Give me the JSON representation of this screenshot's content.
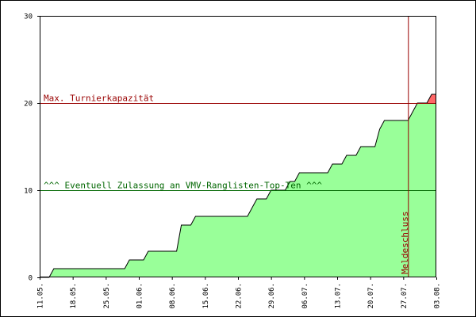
{
  "chart_data": {
    "type": "area",
    "x_start": "2013-05-11",
    "x_end": "2013-08-03",
    "xlim": [
      "2013-05-11",
      "2013-08-03"
    ],
    "ylim": [
      0,
      30
    ],
    "grid": false,
    "y_ticks": [
      0,
      10,
      20,
      30
    ],
    "x_ticks": [
      {
        "date": "2013-05-11",
        "label": "11.05."
      },
      {
        "date": "2013-05-18",
        "label": "18.05."
      },
      {
        "date": "2013-05-25",
        "label": "25.05."
      },
      {
        "date": "2013-06-01",
        "label": "01.06."
      },
      {
        "date": "2013-06-08",
        "label": "08.06."
      },
      {
        "date": "2013-06-15",
        "label": "15.06."
      },
      {
        "date": "2013-06-22",
        "label": "22.06."
      },
      {
        "date": "2013-06-29",
        "label": "29.06."
      },
      {
        "date": "2013-07-06",
        "label": "06.07."
      },
      {
        "date": "2013-07-13",
        "label": "13.07."
      },
      {
        "date": "2013-07-20",
        "label": "20.07."
      },
      {
        "date": "2013-07-27",
        "label": "27.07."
      },
      {
        "date": "2013-08-03",
        "label": "03.08."
      }
    ],
    "series": [
      {
        "color": "#99ff99",
        "over_capacity_color": "#ff6666",
        "points": [
          {
            "date": "2013-05-11",
            "value": 0
          },
          {
            "date": "2013-05-13",
            "value": 0
          },
          {
            "date": "2013-05-14",
            "value": 1
          },
          {
            "date": "2013-05-29",
            "value": 1
          },
          {
            "date": "2013-05-30",
            "value": 2
          },
          {
            "date": "2013-06-02",
            "value": 2
          },
          {
            "date": "2013-06-03",
            "value": 3
          },
          {
            "date": "2013-06-09",
            "value": 3
          },
          {
            "date": "2013-06-10",
            "value": 6
          },
          {
            "date": "2013-06-12",
            "value": 6
          },
          {
            "date": "2013-06-13",
            "value": 7
          },
          {
            "date": "2013-06-24",
            "value": 7
          },
          {
            "date": "2013-06-26",
            "value": 9
          },
          {
            "date": "2013-06-28",
            "value": 9
          },
          {
            "date": "2013-06-29",
            "value": 10
          },
          {
            "date": "2013-07-02",
            "value": 10
          },
          {
            "date": "2013-07-03",
            "value": 11
          },
          {
            "date": "2013-07-04",
            "value": 11
          },
          {
            "date": "2013-07-05",
            "value": 12
          },
          {
            "date": "2013-07-11",
            "value": 12
          },
          {
            "date": "2013-07-12",
            "value": 13
          },
          {
            "date": "2013-07-14",
            "value": 13
          },
          {
            "date": "2013-07-15",
            "value": 14
          },
          {
            "date": "2013-07-17",
            "value": 14
          },
          {
            "date": "2013-07-18",
            "value": 15
          },
          {
            "date": "2013-07-21",
            "value": 15
          },
          {
            "date": "2013-07-22",
            "value": 17
          },
          {
            "date": "2013-07-23",
            "value": 18
          },
          {
            "date": "2013-07-28",
            "value": 18
          },
          {
            "date": "2013-07-30",
            "value": 20
          },
          {
            "date": "2013-08-01",
            "value": 20
          },
          {
            "date": "2013-08-02",
            "value": 21
          },
          {
            "date": "2013-08-03",
            "value": 21
          }
        ]
      }
    ],
    "reference_lines": [
      {
        "orientation": "horizontal",
        "value": 20,
        "color": "#990000",
        "label": "Max. Turnierkapazität"
      },
      {
        "orientation": "horizontal",
        "value": 10,
        "color": "#006600",
        "label": "^^^ Eventuell Zulassung an VMV-Ranglisten-Top-Ten ^^^"
      },
      {
        "orientation": "vertical",
        "date": "2013-07-28",
        "color": "#990000",
        "label": "Meldeschluss"
      }
    ],
    "colors": {
      "axis": "#000000",
      "outline": "#000000",
      "tick_text": "#000000"
    }
  }
}
